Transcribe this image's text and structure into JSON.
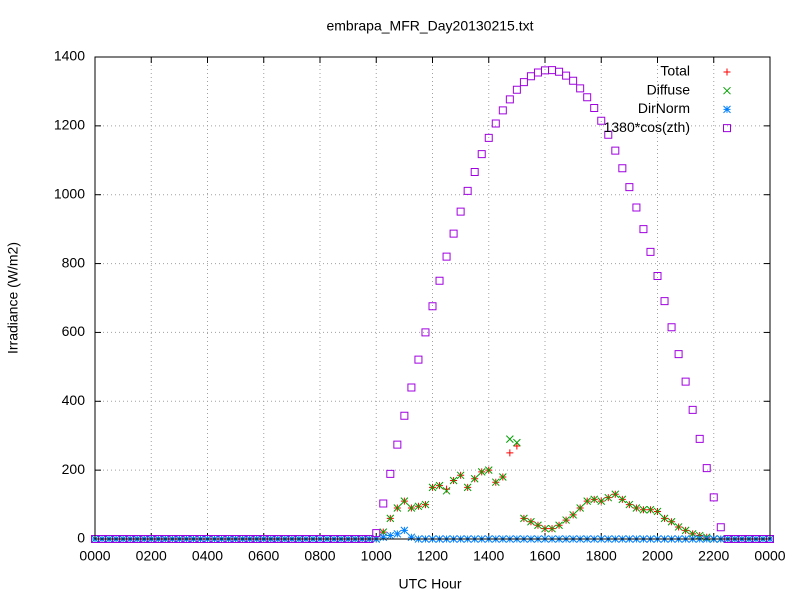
{
  "chart_data": {
    "type": "scatter",
    "title": "embrapa_MFR_Day20130215.txt",
    "xlabel": "UTC Hour",
    "ylabel": "Irradiance (W/m2)",
    "xlim": [
      0,
      24
    ],
    "ylim": [
      0,
      1400
    ],
    "xticks": [
      {
        "value": 0,
        "label": "0000"
      },
      {
        "value": 2,
        "label": "0200"
      },
      {
        "value": 4,
        "label": "0400"
      },
      {
        "value": 6,
        "label": "0600"
      },
      {
        "value": 8,
        "label": "0800"
      },
      {
        "value": 10,
        "label": "1000"
      },
      {
        "value": 12,
        "label": "1200"
      },
      {
        "value": 14,
        "label": "1400"
      },
      {
        "value": 16,
        "label": "1600"
      },
      {
        "value": 18,
        "label": "1800"
      },
      {
        "value": 20,
        "label": "2000"
      },
      {
        "value": 22,
        "label": "2200"
      },
      {
        "value": 24,
        "label": "0000"
      }
    ],
    "yticks": [
      0,
      200,
      400,
      600,
      800,
      1000,
      1200,
      1400
    ],
    "grid": true,
    "legend": "top-right",
    "x": [
      0,
      0.25,
      0.5,
      0.75,
      1,
      1.25,
      1.5,
      1.75,
      2,
      2.25,
      2.5,
      2.75,
      3,
      3.25,
      3.5,
      3.75,
      4,
      4.25,
      4.5,
      4.75,
      5,
      5.25,
      5.5,
      5.75,
      6,
      6.25,
      6.5,
      6.75,
      7,
      7.25,
      7.5,
      7.75,
      8,
      8.25,
      8.5,
      8.75,
      9,
      9.25,
      9.5,
      9.75,
      10,
      10.25,
      10.5,
      10.75,
      11,
      11.25,
      11.5,
      11.75,
      12,
      12.25,
      12.5,
      12.75,
      13,
      13.25,
      13.5,
      13.75,
      14,
      14.25,
      14.5,
      14.75,
      15,
      15.25,
      15.5,
      15.75,
      16,
      16.25,
      16.5,
      16.75,
      17,
      17.25,
      17.5,
      17.75,
      18,
      18.25,
      18.5,
      18.75,
      19,
      19.25,
      19.5,
      19.75,
      20,
      20.25,
      20.5,
      20.75,
      21,
      21.25,
      21.5,
      21.75,
      22,
      22.25,
      22.5,
      22.75,
      23,
      23.25,
      23.5,
      23.75,
      24
    ],
    "series": [
      {
        "name": "Total",
        "color": "#ff0000",
        "marker": "plus",
        "values": [
          0,
          0,
          0,
          0,
          0,
          0,
          0,
          0,
          0,
          0,
          0,
          0,
          0,
          0,
          0,
          0,
          0,
          0,
          0,
          0,
          0,
          0,
          0,
          0,
          0,
          0,
          0,
          0,
          0,
          0,
          0,
          0,
          0,
          0,
          0,
          0,
          0,
          0,
          0,
          0,
          0,
          20,
          60,
          90,
          110,
          90,
          95,
          100,
          150,
          155,
          145,
          170,
          185,
          150,
          175,
          195,
          200,
          165,
          180,
          250,
          270,
          60,
          50,
          40,
          30,
          30,
          40,
          55,
          70,
          90,
          110,
          115,
          110,
          120,
          130,
          115,
          100,
          90,
          85,
          85,
          80,
          60,
          50,
          35,
          25,
          15,
          10,
          5,
          0,
          0,
          0,
          0,
          0,
          0,
          0,
          0,
          0
        ]
      },
      {
        "name": "Diffuse",
        "color": "#00a000",
        "marker": "cross",
        "values": [
          0,
          0,
          0,
          0,
          0,
          0,
          0,
          0,
          0,
          0,
          0,
          0,
          0,
          0,
          0,
          0,
          0,
          0,
          0,
          0,
          0,
          0,
          0,
          0,
          0,
          0,
          0,
          0,
          0,
          0,
          0,
          0,
          0,
          0,
          0,
          0,
          0,
          0,
          0,
          0,
          0,
          20,
          60,
          90,
          110,
          90,
          95,
          100,
          150,
          155,
          140,
          170,
          185,
          150,
          175,
          195,
          200,
          165,
          180,
          290,
          280,
          60,
          50,
          40,
          30,
          30,
          40,
          55,
          70,
          90,
          110,
          115,
          110,
          120,
          130,
          115,
          100,
          90,
          85,
          85,
          80,
          60,
          50,
          35,
          25,
          15,
          10,
          5,
          0,
          0,
          0,
          0,
          0,
          0,
          0,
          0,
          0
        ]
      },
      {
        "name": "DirNorm",
        "color": "#0080ff",
        "marker": "star",
        "values": [
          0,
          0,
          0,
          0,
          0,
          0,
          0,
          0,
          0,
          0,
          0,
          0,
          0,
          0,
          0,
          0,
          0,
          0,
          0,
          0,
          0,
          0,
          0,
          0,
          0,
          0,
          0,
          0,
          0,
          0,
          0,
          0,
          0,
          0,
          0,
          0,
          0,
          0,
          0,
          0,
          0,
          5,
          10,
          15,
          25,
          5,
          0,
          0,
          0,
          0,
          0,
          0,
          0,
          0,
          0,
          0,
          0,
          0,
          0,
          0,
          0,
          0,
          0,
          0,
          0,
          0,
          0,
          0,
          0,
          0,
          0,
          0,
          0,
          0,
          0,
          0,
          0,
          0,
          0,
          0,
          0,
          0,
          0,
          0,
          0,
          0,
          0,
          0,
          0,
          0,
          0,
          0,
          0,
          0,
          0,
          0,
          0
        ]
      },
      {
        "name": "1380*cos(zth)",
        "color": "#a000e0",
        "marker": "square",
        "values": [
          0,
          0,
          0,
          0,
          0,
          0,
          0,
          0,
          0,
          0,
          0,
          0,
          0,
          0,
          0,
          0,
          0,
          0,
          0,
          0,
          0,
          0,
          0,
          0,
          0,
          0,
          0,
          0,
          0,
          0,
          0,
          0,
          0,
          0,
          0,
          0,
          0,
          0,
          0,
          0,
          17,
          103,
          189,
          274,
          358,
          440,
          521,
          600,
          676,
          750,
          820,
          887,
          951,
          1011,
          1066,
          1118,
          1165,
          1207,
          1245,
          1277,
          1305,
          1327,
          1344,
          1355,
          1361,
          1362,
          1357,
          1346,
          1331,
          1309,
          1283,
          1252,
          1215,
          1174,
          1128,
          1077,
          1022,
          963,
          900,
          834,
          764,
          691,
          615,
          537,
          457,
          375,
          291,
          206,
          121,
          34,
          0,
          0,
          0,
          0,
          0,
          0,
          0
        ]
      }
    ]
  }
}
